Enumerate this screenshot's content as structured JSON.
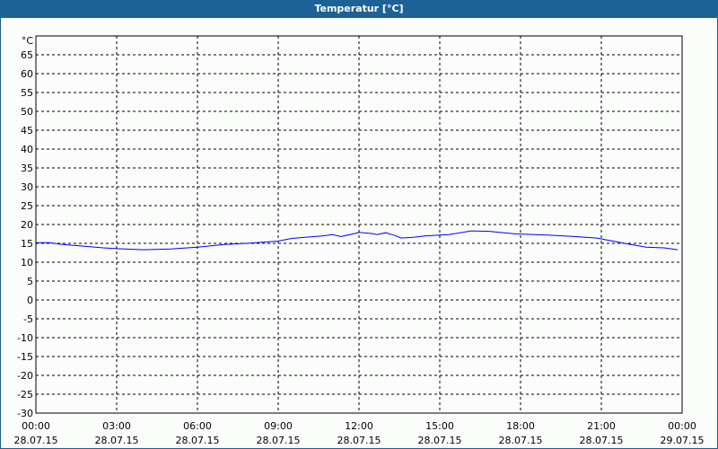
{
  "title": "Temperatur [°C]",
  "chart_data": {
    "type": "line",
    "title": "Temperatur [°C]",
    "ylabel": "°C",
    "ylim": [
      -30,
      70
    ],
    "yticks": [
      65,
      60,
      55,
      50,
      45,
      40,
      35,
      30,
      25,
      20,
      15,
      10,
      5,
      0,
      -5,
      -10,
      -15,
      -20,
      -25,
      -30
    ],
    "xlim": [
      "28.07.15 00:00",
      "29.07.15 00:00"
    ],
    "xticks": [
      {
        "time": "00:00",
        "date": "28.07.15"
      },
      {
        "time": "03:00",
        "date": "28.07.15"
      },
      {
        "time": "06:00",
        "date": "28.07.15"
      },
      {
        "time": "09:00",
        "date": "28.07.15"
      },
      {
        "time": "12:00",
        "date": "28.07.15"
      },
      {
        "time": "15:00",
        "date": "28.07.15"
      },
      {
        "time": "18:00",
        "date": "28.07.15"
      },
      {
        "time": "21:00",
        "date": "28.07.15"
      },
      {
        "time": "00:00",
        "date": "29.07.15"
      }
    ],
    "grid": true,
    "line_color": "#0000ff",
    "series": [
      {
        "x": [
          "00:00",
          "00:30",
          "01:00",
          "01:40",
          "02:30",
          "03:00",
          "04:00",
          "05:00",
          "06:00",
          "07:00",
          "08:00",
          "09:00",
          "09:30",
          "10:00",
          "10:40",
          "11:00",
          "11:20",
          "11:50",
          "12:00",
          "12:30",
          "12:40",
          "13:00",
          "13:20",
          "13:34",
          "14:00",
          "14:30",
          "15:20",
          "16:10",
          "16:50",
          "17:50",
          "19:00",
          "20:00",
          "20:50",
          "21:30",
          "22:00",
          "22:40",
          "23:20",
          "23:50"
        ],
        "y": [
          15.2,
          15.2,
          14.7,
          14.3,
          13.8,
          13.6,
          13.3,
          13.5,
          14.0,
          14.7,
          15.1,
          15.6,
          16.3,
          16.6,
          17.0,
          17.3,
          16.8,
          17.6,
          17.9,
          17.6,
          17.3,
          17.8,
          17.1,
          16.4,
          16.6,
          17.0,
          17.3,
          18.3,
          18.2,
          17.5,
          17.2,
          16.8,
          16.4,
          15.5,
          14.8,
          14.0,
          13.8,
          13.3
        ]
      }
    ]
  }
}
